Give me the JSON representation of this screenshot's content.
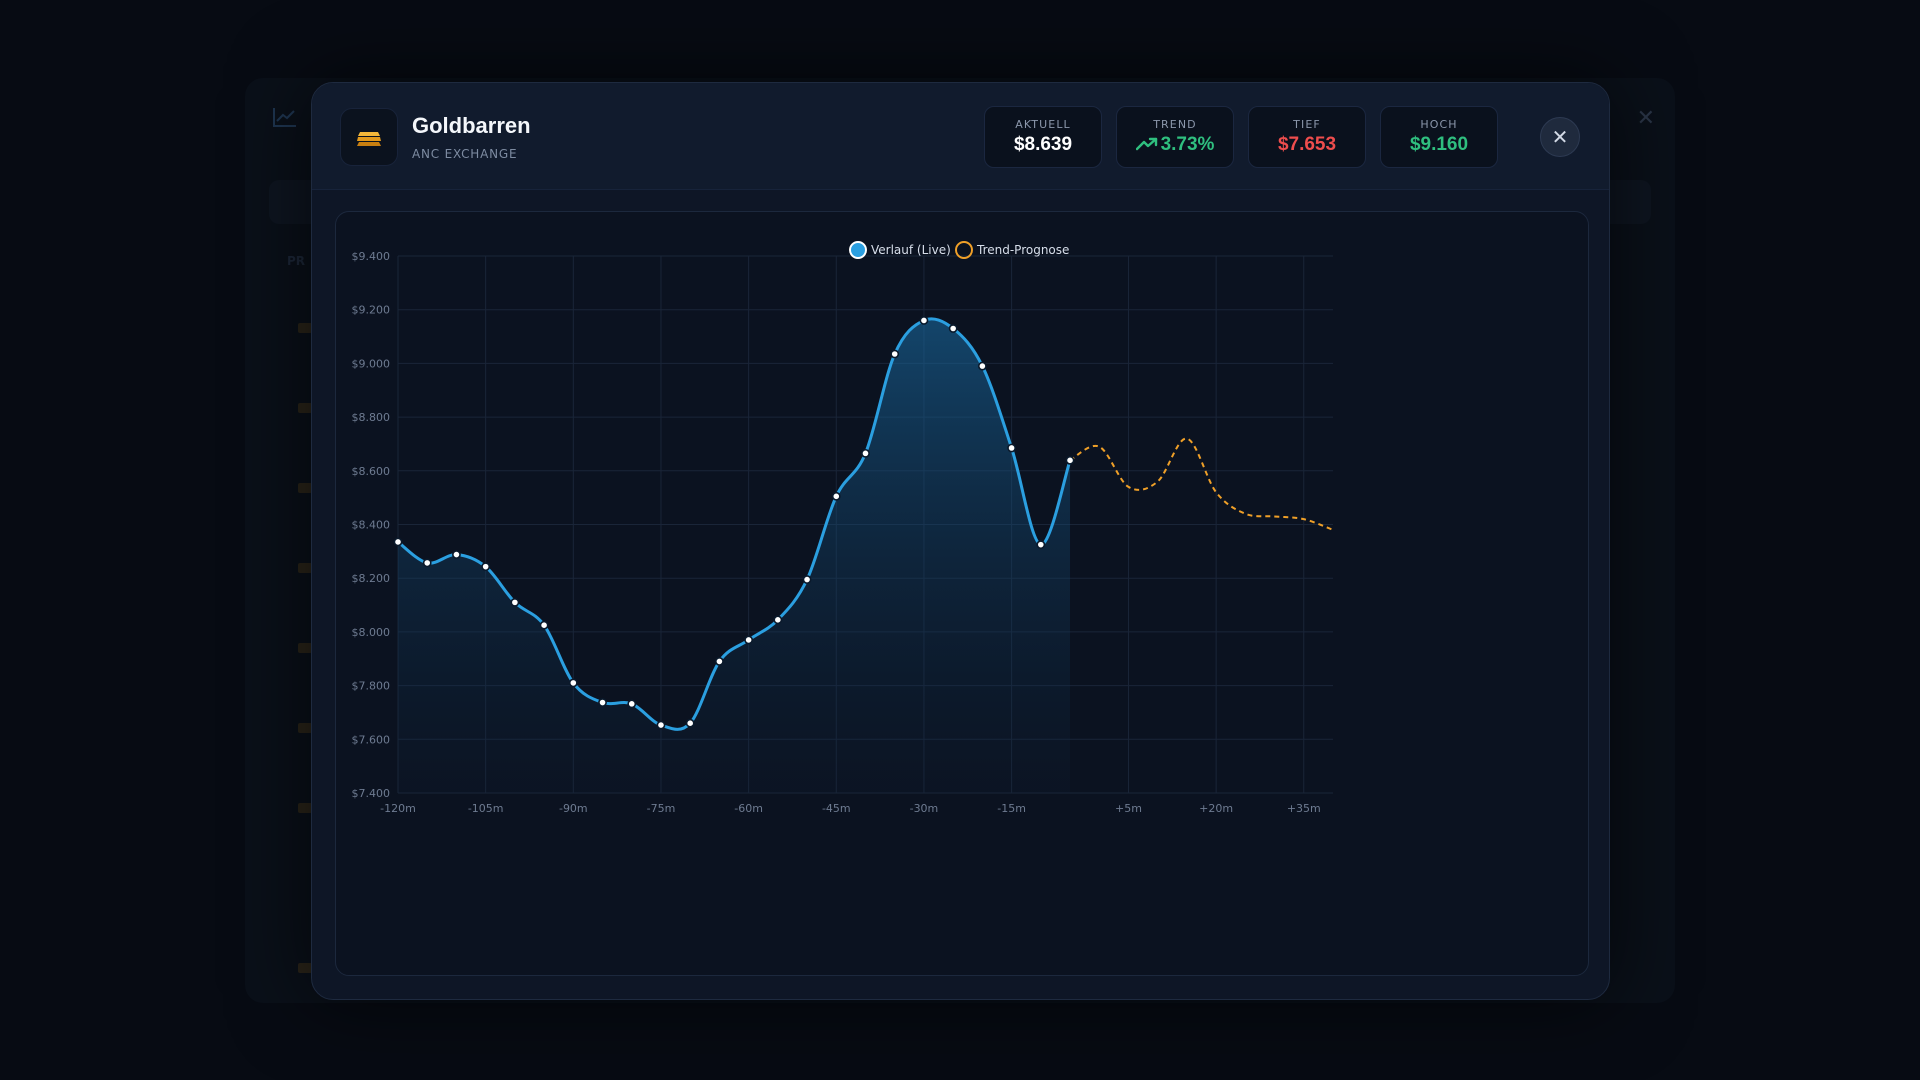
{
  "asset": {
    "name": "Goldbarren",
    "exchange": "ANC EXCHANGE"
  },
  "stats": {
    "current": {
      "label": "AKTUELL",
      "value": "$8.639"
    },
    "trend": {
      "label": "TREND",
      "value": "3.73%"
    },
    "low": {
      "label": "TIEF",
      "value": "$7.653"
    },
    "high": {
      "label": "HOCH",
      "value": "$9.160"
    }
  },
  "colors": {
    "live": "#2b9fe0",
    "forecast": "#f0a028",
    "positive": "#2fbf7f",
    "negative": "#ee4d4d",
    "gold": "#f2a623"
  },
  "icons": {
    "asset": "gold-bars-icon",
    "close": "close-icon",
    "trend": "trend-up-icon"
  },
  "chart_data": {
    "type": "line",
    "legend": [
      "Verlauf (Live)",
      "Trend-Prognose"
    ],
    "legend_position": "top-center",
    "grid": true,
    "ylim": [
      7400,
      9400
    ],
    "xlim": [
      -120,
      40
    ],
    "y_ticks": [
      "$9.400",
      "$9.200",
      "$9.000",
      "$8.800",
      "$8.600",
      "$8.400",
      "$8.200",
      "$8.000",
      "$7.800",
      "$7.600",
      "$7.400"
    ],
    "x_ticks": [
      "-120m",
      "-105m",
      "-90m",
      "-75m",
      "-60m",
      "-45m",
      "-30m",
      "-15m",
      "+5m",
      "+20m",
      "+35m"
    ],
    "series": [
      {
        "name": "Verlauf (Live)",
        "style": "solid-area",
        "x": [
          -120,
          -115,
          -110,
          -105,
          -100,
          -95,
          -90,
          -85,
          -80,
          -75,
          -70,
          -65,
          -60,
          -55,
          -50,
          -45,
          -40,
          -35,
          -30,
          -25,
          -20,
          -15,
          -10,
          -5
        ],
        "values": [
          8335,
          8257,
          8288,
          8243,
          8110,
          8025,
          7810,
          7737,
          7732,
          7653,
          7660,
          7890,
          7970,
          8045,
          8195,
          8505,
          8665,
          9035,
          9160,
          9130,
          8990,
          8685,
          8325,
          8639
        ]
      },
      {
        "name": "Trend-Prognose",
        "style": "dashed",
        "x": [
          -5,
          0,
          5,
          10,
          15,
          20,
          25,
          30,
          35,
          40
        ],
        "values": [
          8639,
          8690,
          8540,
          8560,
          8720,
          8520,
          8440,
          8430,
          8420,
          8380
        ]
      }
    ]
  }
}
